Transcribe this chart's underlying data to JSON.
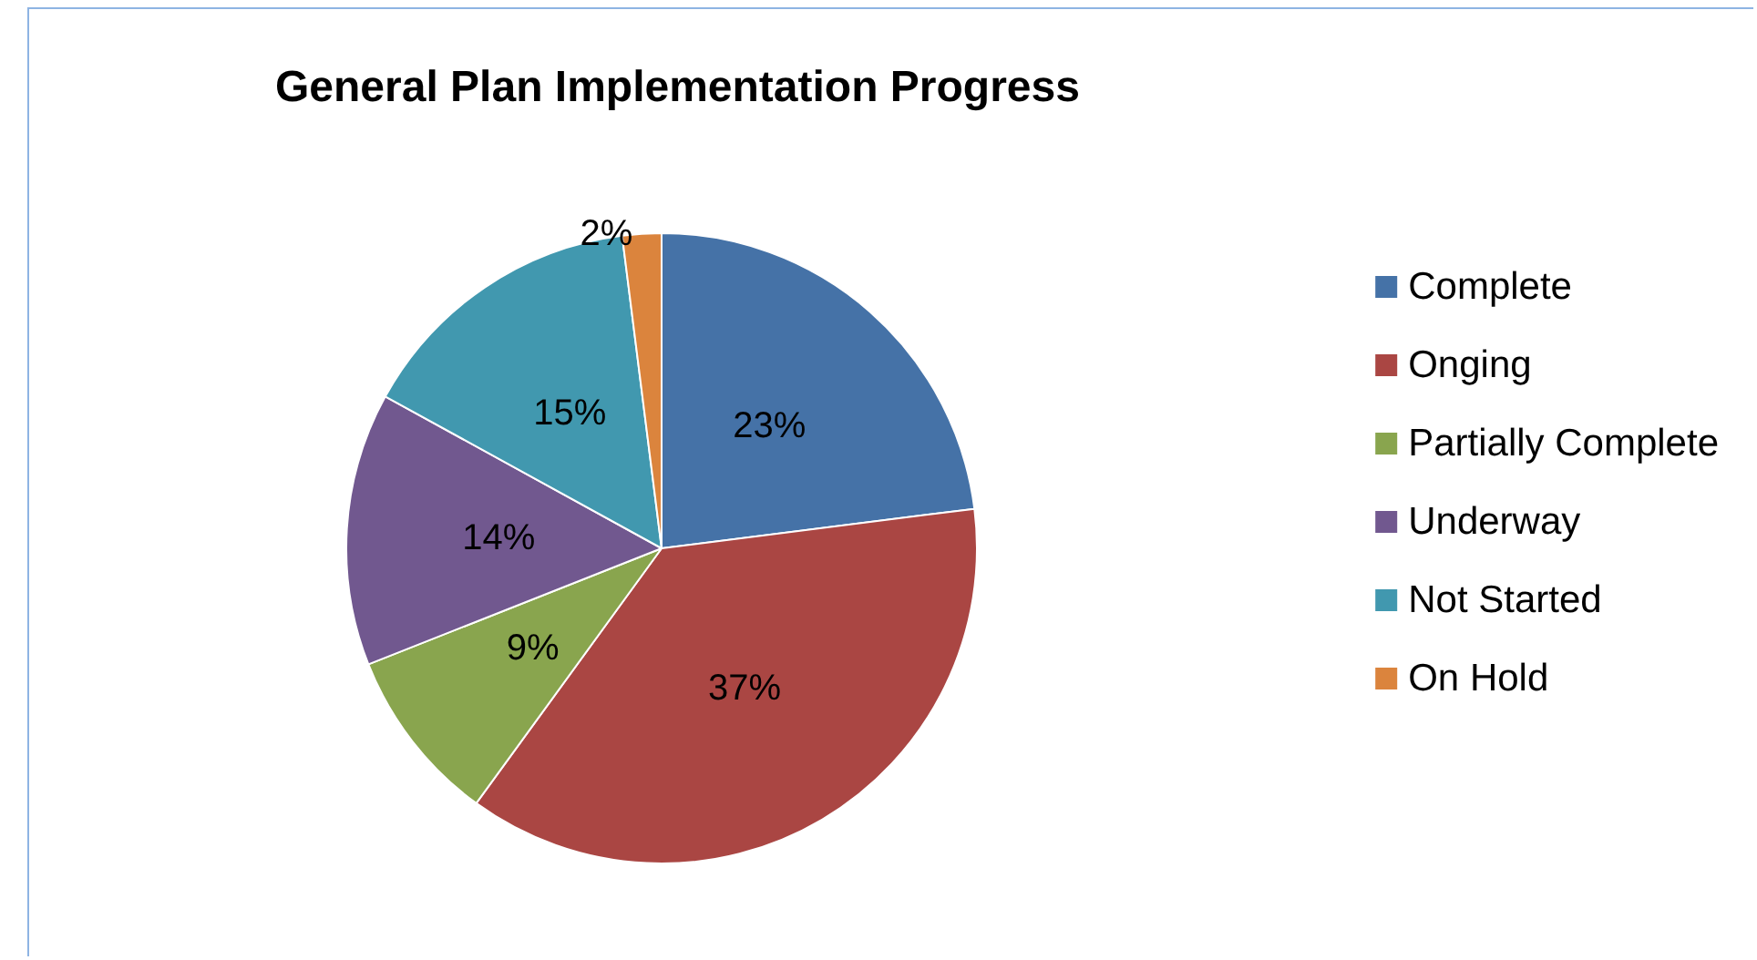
{
  "chart_data": {
    "type": "pie",
    "title": "General Plan Implementation Progress",
    "categories": [
      "Complete",
      "Onging",
      "Partially Complete",
      "Underway",
      "Not Started",
      "On Hold"
    ],
    "values": [
      23,
      37,
      9,
      14,
      15,
      2
    ],
    "colors": [
      "#4572a7",
      "#aa4643",
      "#89a54e",
      "#71588f",
      "#4198af",
      "#db843d"
    ],
    "value_labels": [
      "23%",
      "37%",
      "9%",
      "14%",
      "15%",
      "2%"
    ],
    "legend": "right"
  }
}
